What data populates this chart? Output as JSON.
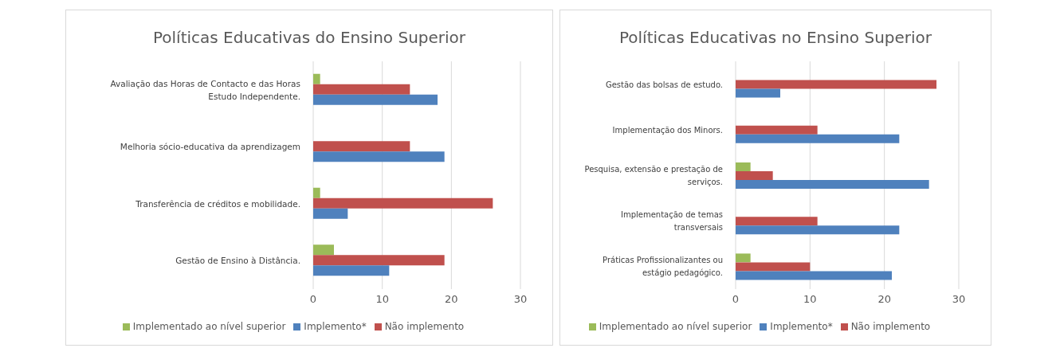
{
  "chart_data": [
    {
      "type": "bar",
      "orientation": "horizontal",
      "title": "Políticas Educativas do Ensino Superior",
      "categories": [
        "Avaliação das Horas de Contacto e das Horas Estudo Independente.",
        "Melhoria sócio-educativa da aprendizagem",
        "Transferência de créditos e mobilidade.",
        "Gestão de Ensino à Distância."
      ],
      "series": [
        {
          "name": "Implementado ao nível superior",
          "color": "#9bbb59",
          "values": [
            1,
            null,
            1,
            3
          ]
        },
        {
          "name": "Não implemento",
          "color": "#c0504d",
          "values": [
            14,
            14,
            26,
            19
          ]
        },
        {
          "name": "Implemento*",
          "color": "#4f81bd",
          "values": [
            18,
            19,
            5,
            11
          ]
        }
      ],
      "xlim": [
        0,
        30
      ],
      "xticks": [
        0,
        10,
        20,
        30
      ],
      "grid": "x",
      "legend": "bottom"
    },
    {
      "type": "bar",
      "orientation": "horizontal",
      "title": "Políticas Educativas no Ensino Superior",
      "categories": [
        "Gestão das bolsas de estudo.",
        "Implementação dos Minors.",
        "Pesquisa, extensão e prestação de serviços.",
        "Implementação de temas transversais",
        "Práticas Profissionalizantes ou estágio pedagógico."
      ],
      "series": [
        {
          "name": "Implementado ao nível superior",
          "color": "#9bbb59",
          "values": [
            null,
            null,
            2,
            null,
            2
          ]
        },
        {
          "name": "Não implemento",
          "color": "#c0504d",
          "values": [
            27,
            11,
            5,
            11,
            10
          ]
        },
        {
          "name": "Implemento*",
          "color": "#4f81bd",
          "values": [
            6,
            22,
            26,
            22,
            21
          ]
        }
      ],
      "xlim": [
        0,
        30
      ],
      "xticks": [
        0,
        10,
        20,
        30
      ],
      "grid": "x",
      "legend": "bottom"
    }
  ]
}
